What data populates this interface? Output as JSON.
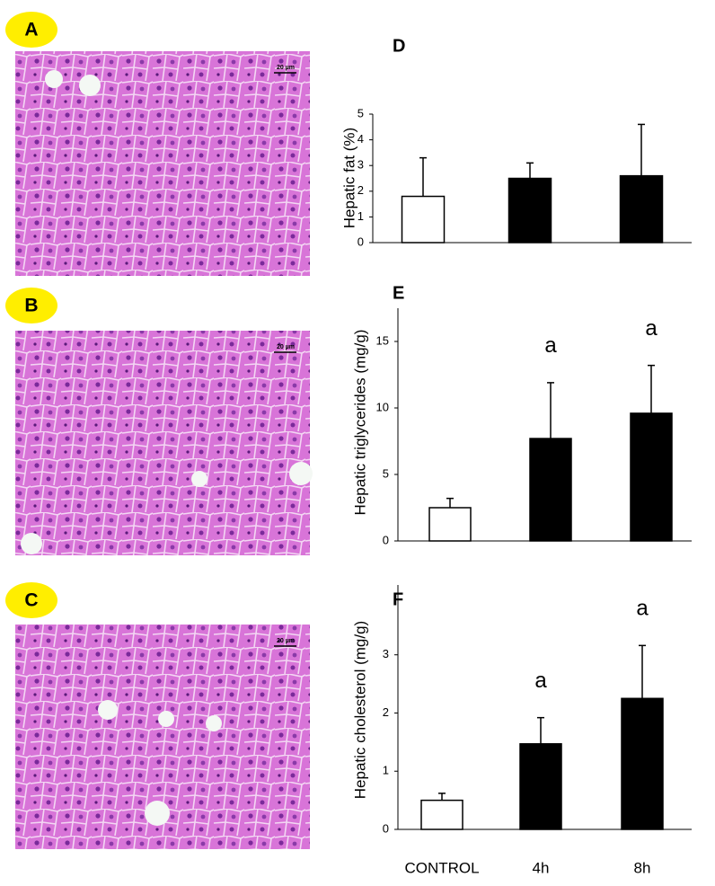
{
  "panels": [
    {
      "label": "A",
      "scale_bar": "20 µm"
    },
    {
      "label": "B",
      "scale_bar": "20 µm"
    },
    {
      "label": "C",
      "scale_bar": "20 µm"
    }
  ],
  "chart_data": [
    {
      "type": "bar",
      "title": "D",
      "y_label": "Hepatic fat (%)",
      "categories": [
        null,
        null,
        null
      ],
      "values": [
        1.8,
        2.5,
        2.6
      ],
      "errors": [
        1.5,
        0.6,
        2.0
      ],
      "colors": [
        "#ffffff",
        "#000000",
        "#000000"
      ],
      "annotations": [
        null,
        null,
        null
      ],
      "ylim": [
        0,
        5
      ],
      "yticks": [
        0,
        1,
        2,
        3,
        4,
        5
      ]
    },
    {
      "type": "bar",
      "title": "E",
      "y_label": "Hepatic triglycerides (mg/g)",
      "categories": [
        null,
        null,
        null
      ],
      "values": [
        2.5,
        7.7,
        9.6
      ],
      "errors": [
        0.7,
        4.2,
        3.6
      ],
      "colors": [
        "#ffffff",
        "#000000",
        "#000000"
      ],
      "annotations": [
        null,
        "a",
        "a"
      ],
      "ylim": [
        0,
        17.5
      ],
      "yticks": [
        0,
        5,
        10,
        15
      ]
    },
    {
      "type": "bar",
      "title": "F",
      "y_label": "Hepatic cholesterol (mg/g)",
      "categories": [
        "CONTROL",
        "4h",
        "8h"
      ],
      "values": [
        0.5,
        1.47,
        2.25
      ],
      "errors": [
        0.12,
        0.45,
        0.91
      ],
      "colors": [
        "#ffffff",
        "#000000",
        "#000000"
      ],
      "annotations": [
        null,
        "a",
        "a"
      ],
      "ylim": [
        0,
        4.2
      ],
      "yticks": [
        0,
        1,
        2,
        3
      ]
    }
  ]
}
